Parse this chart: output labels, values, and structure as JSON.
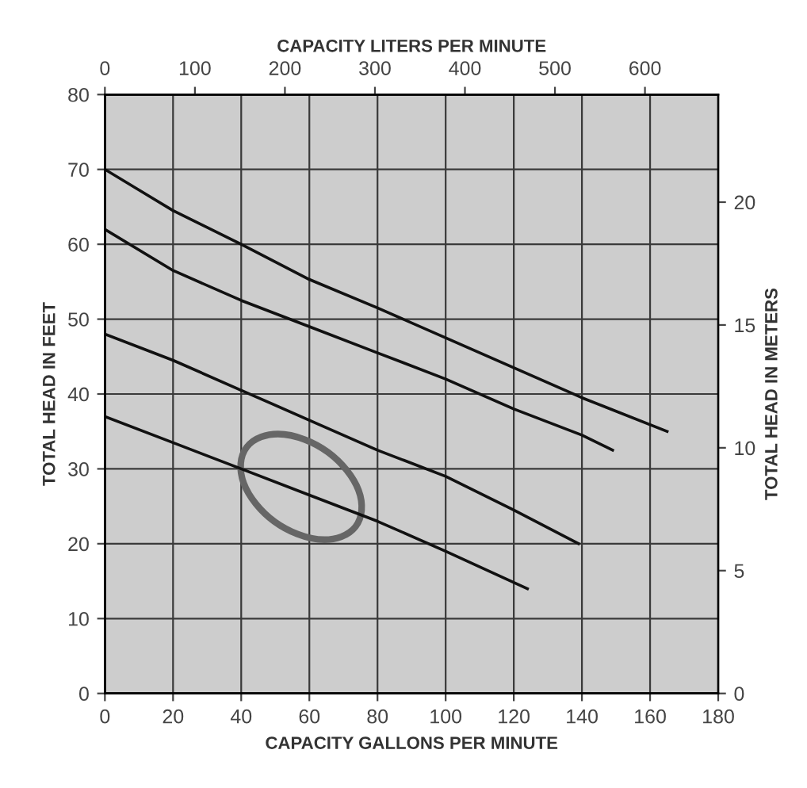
{
  "chart_data": {
    "type": "line",
    "xlabel": "CAPACITY GALLONS PER MINUTE",
    "ylabel": "TOTAL HEAD IN FEET",
    "y2label": "TOTAL HEAD IN METERS",
    "x2label": "CAPACITY LITERS PER MINUTE",
    "xlim": [
      0,
      180
    ],
    "xticks": [
      0,
      20,
      40,
      60,
      80,
      100,
      120,
      140,
      160,
      180
    ],
    "ylim": [
      0,
      80
    ],
    "yticks": [
      0,
      10,
      20,
      30,
      40,
      50,
      60,
      70,
      80
    ],
    "x2lim": [
      0,
      681.4
    ],
    "x2ticks": [
      0,
      100,
      200,
      300,
      400,
      500,
      600
    ],
    "y2lim": [
      0,
      24.38
    ],
    "y2ticks": [
      0,
      5,
      10,
      15,
      20
    ],
    "grid": true,
    "marker": "none",
    "line_style": "solid",
    "series": [
      {
        "color": "#111111",
        "x": [
          0,
          20,
          40,
          60,
          80,
          100,
          120,
          140,
          165
        ],
        "values": [
          70,
          64.5,
          60,
          55.3,
          51.5,
          47.5,
          43.5,
          39.5,
          35
        ]
      },
      {
        "color": "#111111",
        "x": [
          0,
          20,
          40,
          60,
          80,
          100,
          120,
          140,
          149
        ],
        "values": [
          62,
          56.5,
          52.5,
          49,
          45.5,
          42,
          38,
          34.5,
          32.5
        ]
      },
      {
        "color": "#111111",
        "x": [
          0,
          20,
          40,
          60,
          80,
          100,
          120,
          139
        ],
        "values": [
          48,
          44.5,
          40.5,
          36.5,
          32.5,
          29,
          24.5,
          20
        ]
      },
      {
        "color": "#111111",
        "x": [
          0,
          20,
          40,
          60,
          80,
          100,
          124
        ],
        "values": [
          37,
          33.5,
          30,
          26.5,
          23,
          19,
          14
        ]
      }
    ]
  }
}
